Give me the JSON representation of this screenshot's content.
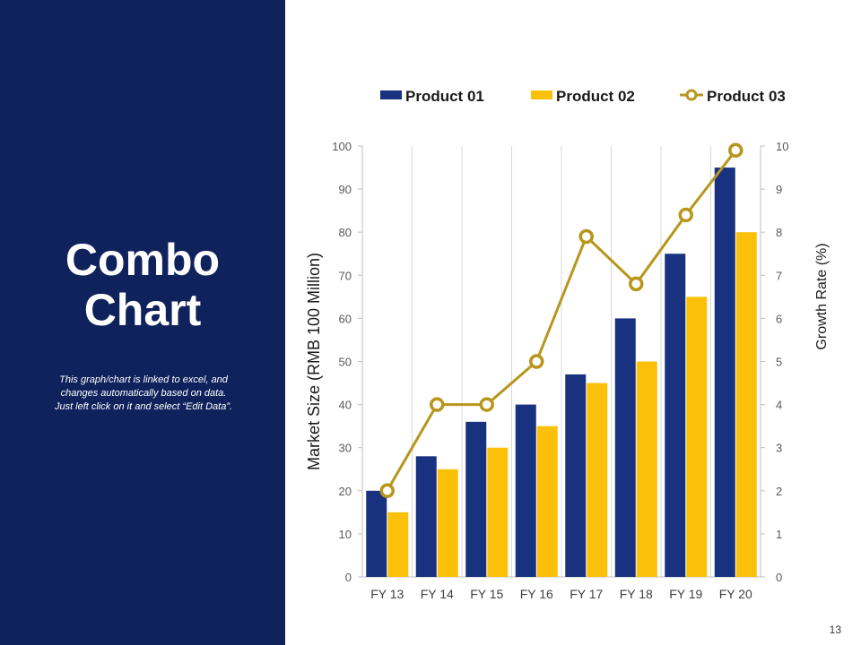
{
  "slide": {
    "title_lines": [
      "Combo",
      "Chart"
    ],
    "note_lines": [
      "This graph/chart is linked to excel, and",
      "changes automatically based on data.",
      "Just left click on it and select “Edit Data”."
    ],
    "page_number": "13",
    "colors": {
      "sidebar": "#10225c",
      "text": "#ffffff"
    }
  },
  "chart_data": {
    "type": "bar",
    "categories": [
      "FY 13",
      "FY 14",
      "FY 15",
      "FY 16",
      "FY 17",
      "FY 18",
      "FY 19",
      "FY 20"
    ],
    "series": [
      {
        "name": "Product 01",
        "type": "bar",
        "axis": "left",
        "color": "#19327f",
        "values": [
          20,
          28,
          36,
          40,
          47,
          60,
          75,
          95
        ]
      },
      {
        "name": "Product 02",
        "type": "bar",
        "axis": "left",
        "color": "#fbc10a",
        "values": [
          15,
          25,
          30,
          35,
          45,
          50,
          65,
          80
        ]
      },
      {
        "name": "Product 03",
        "type": "line",
        "axis": "right",
        "color": "#b8961c",
        "values": [
          2,
          4,
          4,
          5,
          7.9,
          6.8,
          8.4,
          9.9
        ]
      }
    ],
    "ylabel": "Market Size (RMB 100 Million)",
    "y2label": "Growth Rate (%)",
    "ylim": [
      0,
      100
    ],
    "y2lim": [
      0,
      10
    ],
    "yticks": [
      "0",
      "10",
      "20",
      "30",
      "40",
      "50",
      "60",
      "70",
      "80",
      "90",
      "100"
    ],
    "y2ticks": [
      "0",
      "1",
      "2",
      "3",
      "4",
      "5",
      "6",
      "7",
      "8",
      "9",
      "10"
    ],
    "grid": "vertical",
    "legend": "top"
  }
}
